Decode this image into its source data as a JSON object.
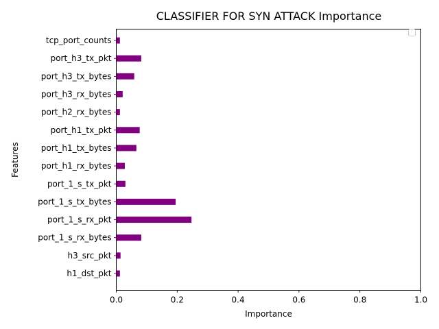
{
  "chart_data": {
    "type": "bar",
    "orientation": "horizontal",
    "title": "CLASSIFIER FOR SYN ATTACK Importance",
    "xlabel": "Importance",
    "ylabel": "Features",
    "xlim": [
      0,
      1
    ],
    "xticks": [
      "0.0",
      "0.2",
      "0.4",
      "0.6",
      "0.8",
      "1.0"
    ],
    "categories": [
      "h1_dst_pkt",
      "h3_src_pkt",
      "port_1_s_rx_bytes",
      "port_1_s_rx_pkt",
      "port_1_s_tx_bytes",
      "port_1_s_tx_pkt",
      "port_h1_rx_bytes",
      "port_h1_tx_bytes",
      "port_h1_tx_pkt",
      "port_h2_rx_bytes",
      "port_h3_rx_bytes",
      "port_h3_tx_bytes",
      "port_h3_tx_pkt",
      "tcp_port_counts"
    ],
    "values": [
      0.012,
      0.014,
      0.082,
      0.247,
      0.195,
      0.03,
      0.028,
      0.066,
      0.077,
      0.012,
      0.021,
      0.059,
      0.082,
      0.012
    ],
    "bar_color": "#800080",
    "legend": {
      "visible": true,
      "placement": "top-right",
      "entries": []
    },
    "grid": false
  }
}
